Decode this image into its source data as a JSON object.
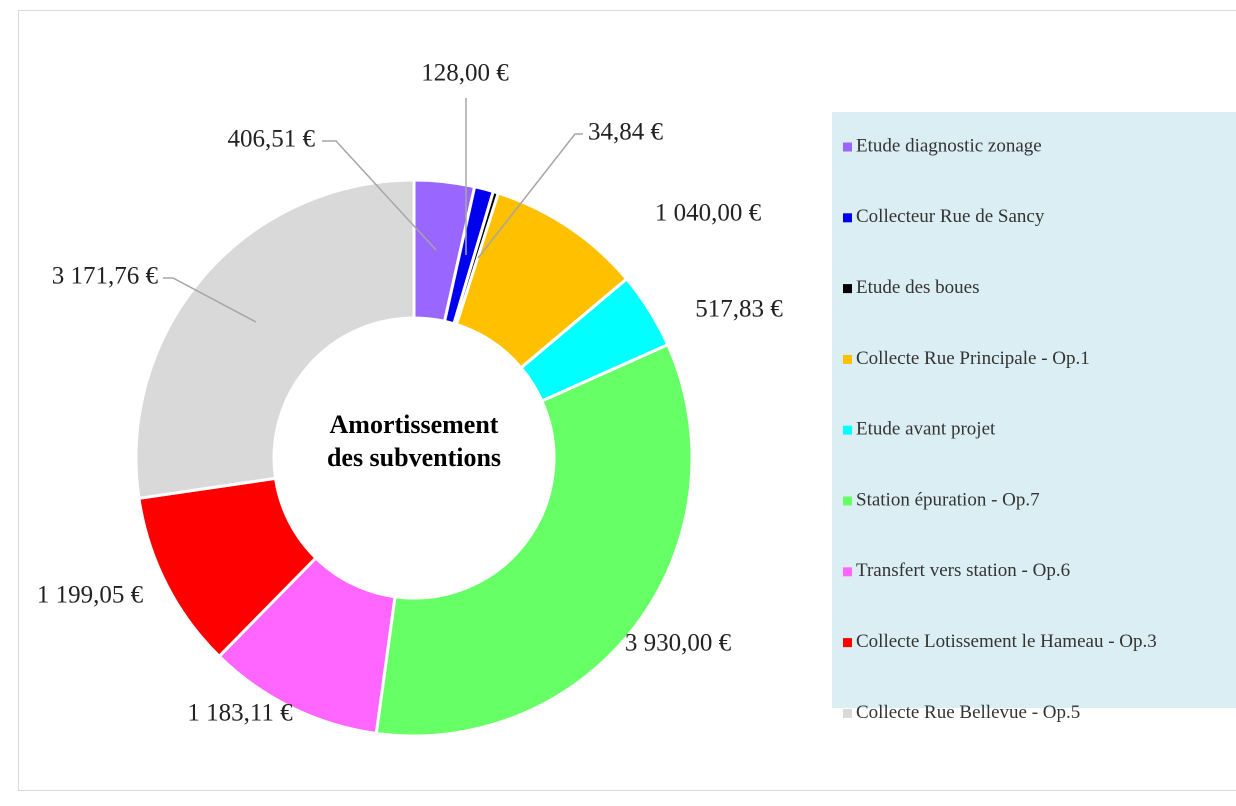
{
  "chart_data": {
    "type": "donut",
    "title": "Amortissement des subventions",
    "categories": [
      "Etude diagnostic zonage",
      "Collecteur Rue de Sancy",
      "Etude des boues",
      "Collecte Rue Principale - Op.1",
      "Etude avant projet",
      "Station épuration - Op.7",
      "Transfert vers station - Op.6",
      "Collecte Lotissement le Hameau - Op.3",
      "Collecte Rue Bellevue - Op.5"
    ],
    "values": [
      406.51,
      128,
      34.84,
      1040,
      517.83,
      3930,
      1183.11,
      1199.05,
      3171.76
    ],
    "value_labels": [
      "406,51 €",
      "128,00 €",
      "34,84 €",
      "1 040,00 €",
      "517,83 €",
      "3 930,00 €",
      "1 183,11 €",
      "1 199,05 €",
      "3 171,76 €"
    ],
    "colors": [
      "#9966ff",
      "#0000ee",
      "#000000",
      "#ffc000",
      "#00ffff",
      "#66ff66",
      "#ff66ff",
      "#ff0000",
      "#d9d9d9"
    ],
    "legend": "right"
  }
}
